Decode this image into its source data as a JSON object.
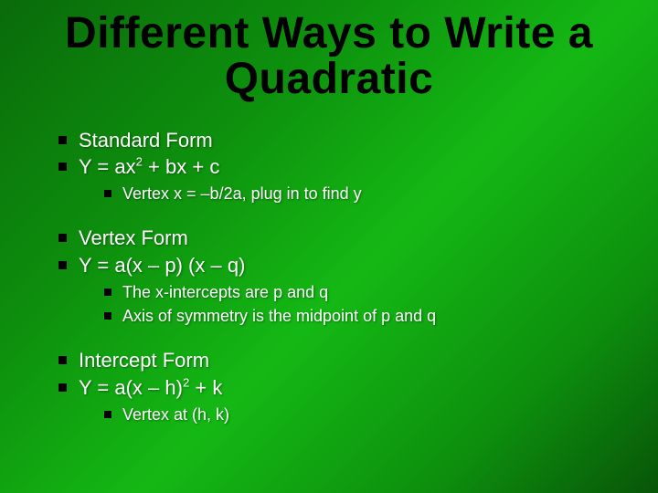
{
  "slide": {
    "title": "Different Ways to Write a Quadratic",
    "background_gradient": [
      "#0a6b0a",
      "#0d8f0d",
      "#14b814",
      "#0d8f0d",
      "#085508"
    ],
    "title_color": "#000000",
    "text_color": "#ffffff",
    "bullet_color": "#000000",
    "title_fontsize": 48,
    "lvl1_fontsize": 22,
    "lvl2_fontsize": 18,
    "groups": [
      {
        "items": [
          {
            "level": 1,
            "text": "Standard Form"
          },
          {
            "level": 1,
            "html": "Y = ax<sup>2</sup> + bx + c"
          },
          {
            "level": 2,
            "text": "Vertex x = –b/2a, plug in to find y"
          }
        ]
      },
      {
        "items": [
          {
            "level": 1,
            "text": "Vertex Form"
          },
          {
            "level": 1,
            "text": "Y = a(x – p) (x – q)"
          },
          {
            "level": 2,
            "text": "The x-intercepts are p and q"
          },
          {
            "level": 2,
            "text": "Axis of symmetry is the midpoint of p and q"
          }
        ]
      },
      {
        "items": [
          {
            "level": 1,
            "text": "Intercept Form"
          },
          {
            "level": 1,
            "html": "Y = a(x – h)<sup>2</sup> + k"
          },
          {
            "level": 2,
            "text": "Vertex at (h, k)"
          }
        ]
      }
    ]
  }
}
